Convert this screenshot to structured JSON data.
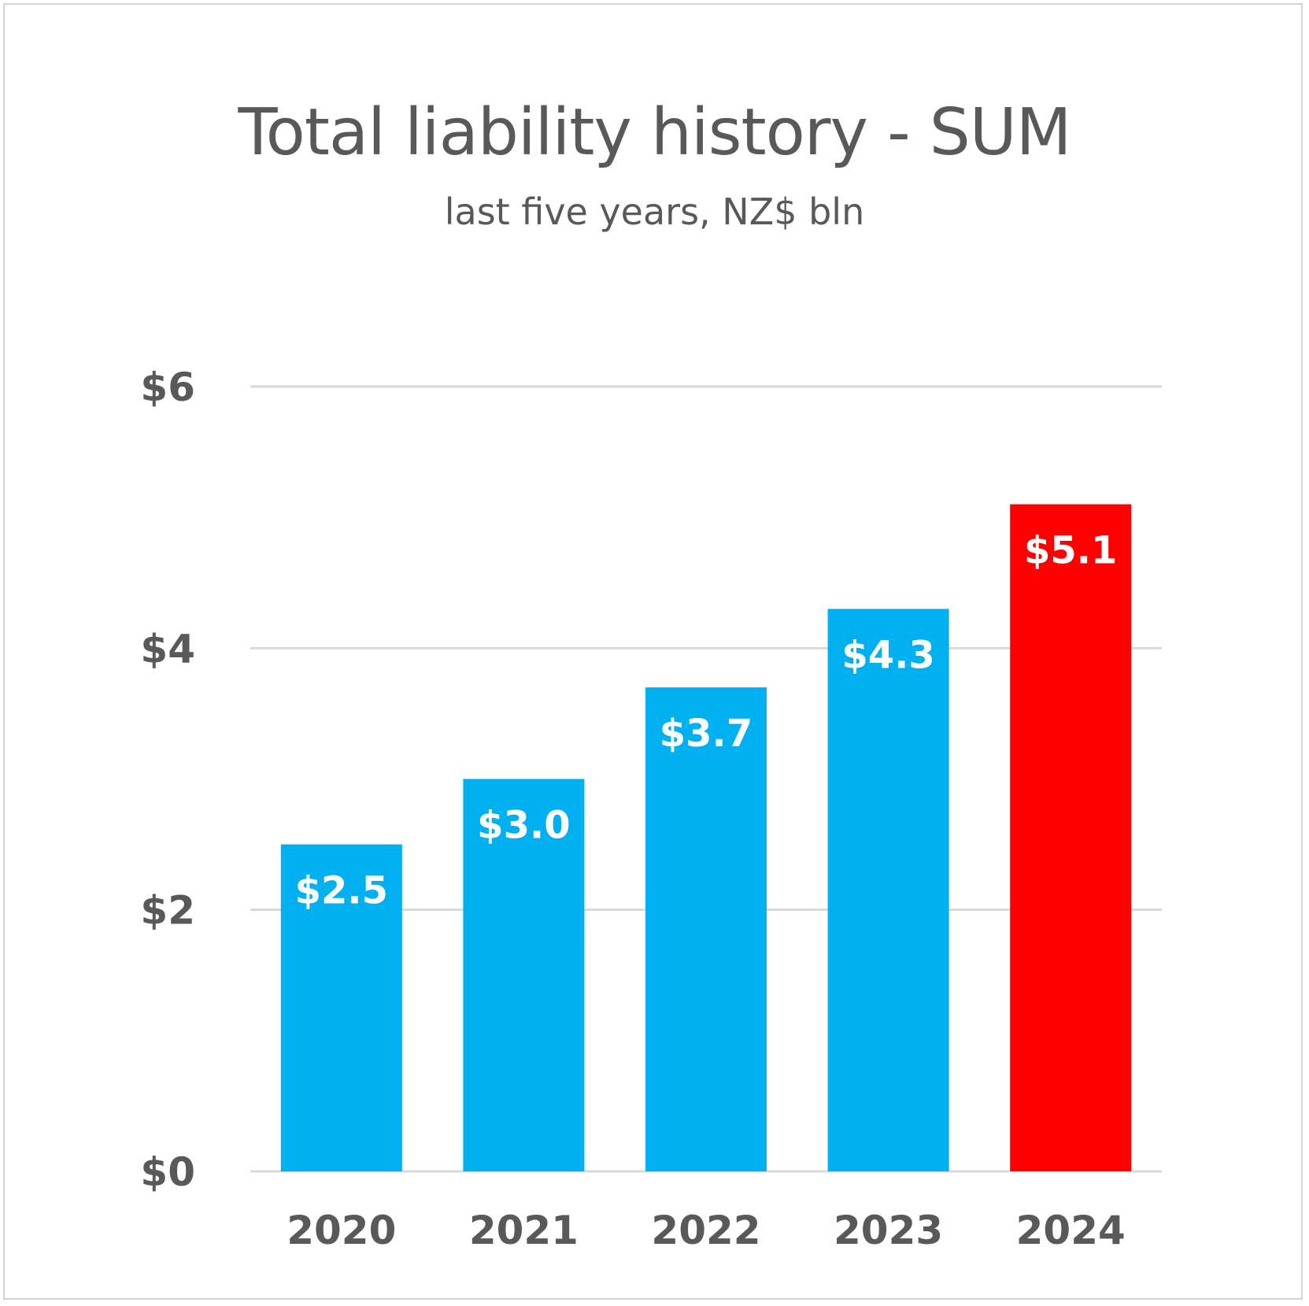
{
  "chart_data": {
    "type": "bar",
    "title": "Total liability history - SUM",
    "subtitle": "last five years, NZ$ bln",
    "xlabel": "",
    "ylabel": "",
    "categories": [
      "2020",
      "2021",
      "2022",
      "2023",
      "2024"
    ],
    "values": [
      2.5,
      3.0,
      3.7,
      4.3,
      5.1
    ],
    "data_labels": [
      "$2.5",
      "$3.0",
      "$3.7",
      "$4.3",
      "$5.1"
    ],
    "ylim": [
      0,
      6
    ],
    "yticks": [
      0,
      2,
      4,
      6
    ],
    "ytick_labels": [
      "$0",
      "$2",
      "$4",
      "$6"
    ],
    "grid": true,
    "legend": "none",
    "colors": {
      "default_bar": "#00B0F0",
      "highlight_bar": "#FF0000",
      "highlight_category": "2024",
      "gridline": "#d9d9d9",
      "text": "#595959"
    }
  }
}
